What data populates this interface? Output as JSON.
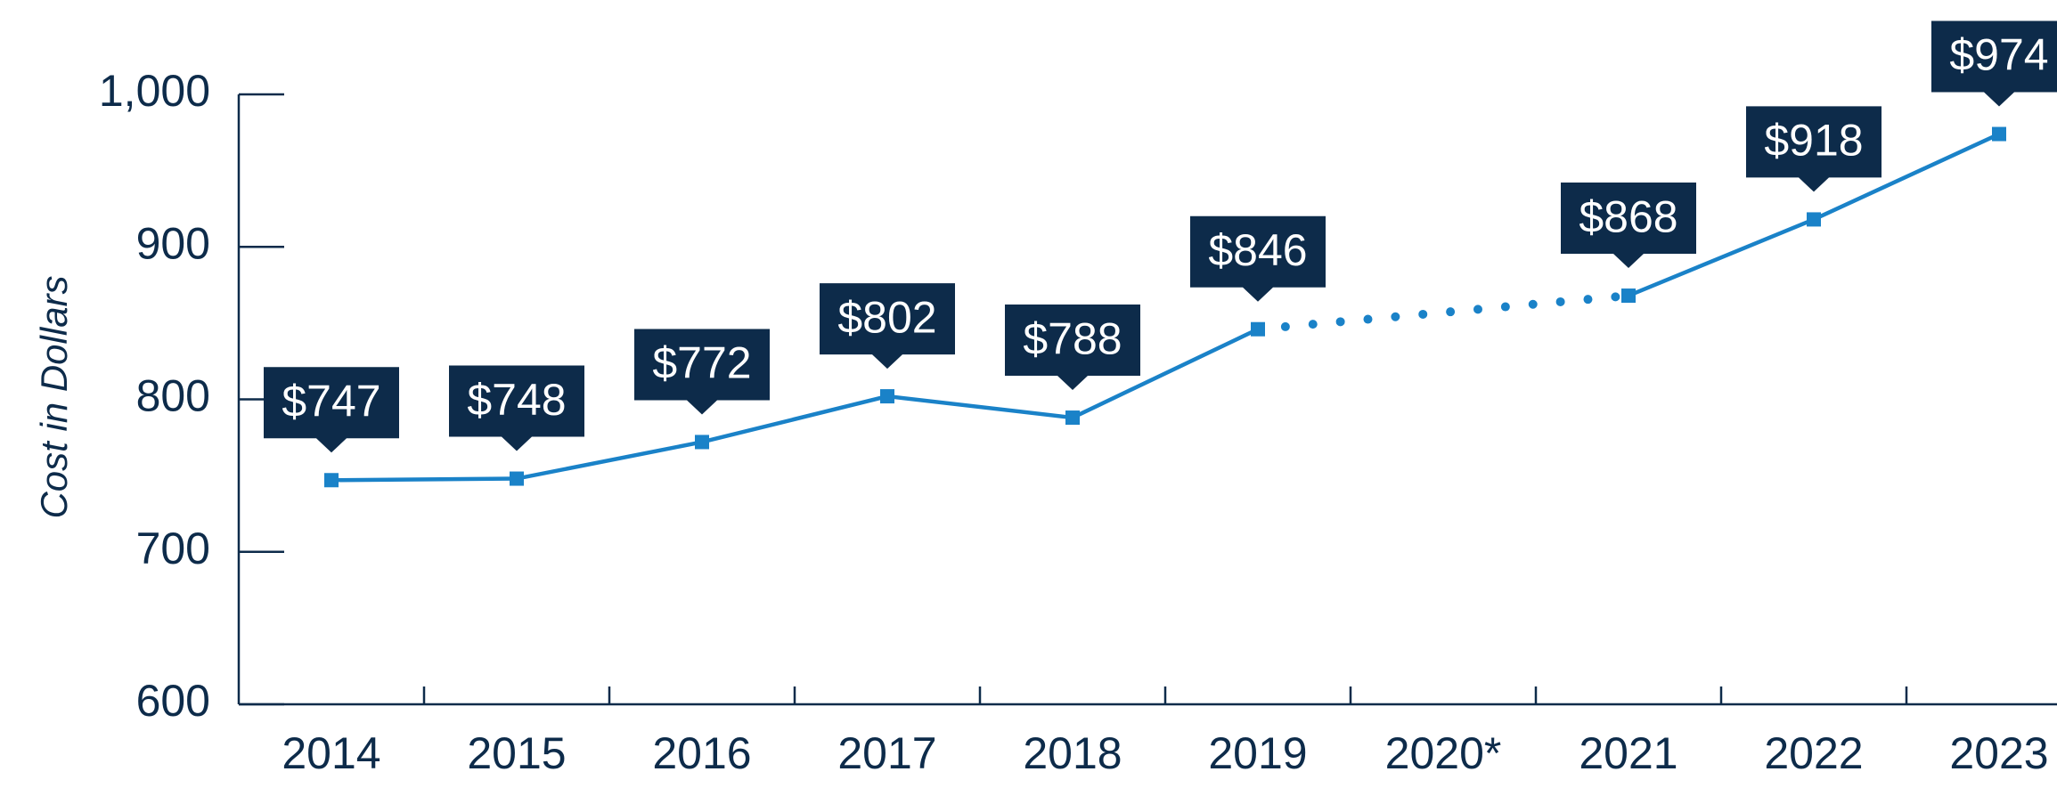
{
  "chart_data": {
    "type": "line",
    "y_label": "Cost in Dollars",
    "categories": [
      "2014",
      "2015",
      "2016",
      "2017",
      "2018",
      "2019",
      "2020*",
      "2021",
      "2022",
      "2023"
    ],
    "series": [
      {
        "name": "Cost",
        "color": "#1a82c8",
        "values": [
          747,
          748,
          772,
          802,
          788,
          846,
          null,
          868,
          918,
          974
        ],
        "value_labels": [
          "$747",
          "$748",
          "$772",
          "$802",
          "$788",
          "$846",
          null,
          "$868",
          "$918",
          "$974"
        ]
      }
    ],
    "ylim": [
      600,
      1000
    ],
    "yticks": [
      600,
      700,
      800,
      900,
      {
        "value": 1000,
        "label": "1,000"
      }
    ],
    "label_color": "#0d2b4a"
  }
}
